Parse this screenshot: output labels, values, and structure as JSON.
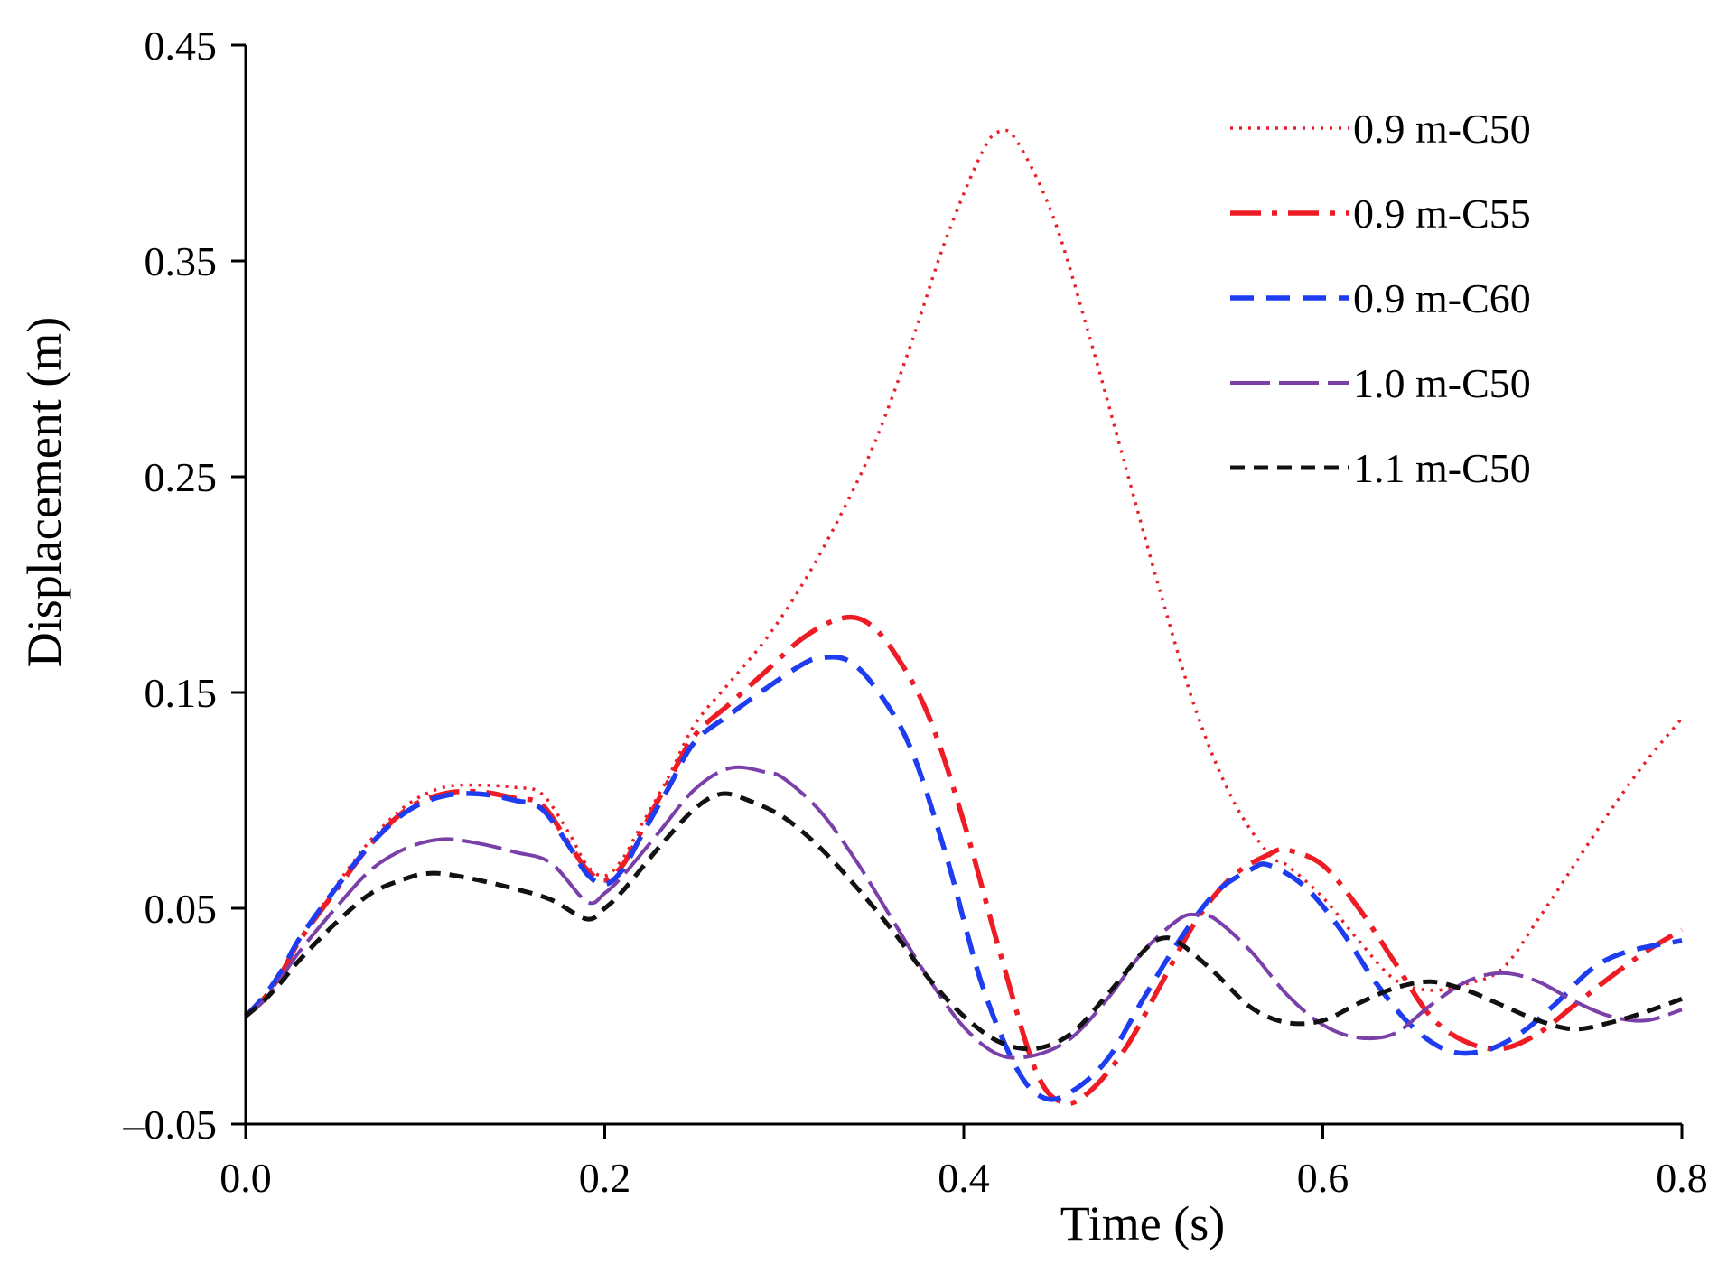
{
  "chart_data": {
    "type": "line",
    "title": "",
    "xlabel": "Time (s)",
    "ylabel": "Displacement (m)",
    "xlim": [
      0.0,
      0.8
    ],
    "ylim": [
      -0.05,
      0.45
    ],
    "xticks": [
      0.0,
      0.2,
      0.4,
      0.6,
      0.8
    ],
    "xtick_labels": [
      "0.0",
      "0.2",
      "0.4",
      "0.6",
      "0.8"
    ],
    "yticks": [
      -0.05,
      0.05,
      0.15,
      0.25,
      0.35,
      0.45
    ],
    "ytick_labels": [
      "–0.05",
      "0.05",
      "0.15",
      "0.25",
      "0.35",
      "0.45"
    ],
    "grid": false,
    "legend_position": "top-right",
    "series": [
      {
        "name": "0.9 m-C50",
        "color": "#e8202a",
        "dash": "dotted",
        "x": [
          0,
          0.01,
          0.02,
          0.03,
          0.05,
          0.07,
          0.09,
          0.11,
          0.13,
          0.15,
          0.165,
          0.18,
          0.19,
          0.2,
          0.21,
          0.22,
          0.235,
          0.25,
          0.27,
          0.29,
          0.31,
          0.33,
          0.35,
          0.37,
          0.39,
          0.41,
          0.42,
          0.43,
          0.45,
          0.47,
          0.49,
          0.51,
          0.53,
          0.55,
          0.57,
          0.58,
          0.6,
          0.62,
          0.64,
          0.66,
          0.68,
          0.7,
          0.72,
          0.74,
          0.76,
          0.78,
          0.8
        ],
        "y": [
          0,
          0.008,
          0.02,
          0.035,
          0.06,
          0.082,
          0.098,
          0.106,
          0.107,
          0.106,
          0.103,
          0.085,
          0.07,
          0.065,
          0.073,
          0.088,
          0.11,
          0.135,
          0.155,
          0.175,
          0.2,
          0.23,
          0.265,
          0.31,
          0.36,
          0.4,
          0.41,
          0.405,
          0.37,
          0.315,
          0.255,
          0.195,
          0.14,
          0.1,
          0.075,
          0.07,
          0.055,
          0.035,
          0.017,
          0.012,
          0.015,
          0.022,
          0.045,
          0.07,
          0.095,
          0.118,
          0.138
        ]
      },
      {
        "name": "0.9 m-C55",
        "color": "#ee1c24",
        "dash": "dash-dot",
        "x": [
          0,
          0.01,
          0.02,
          0.03,
          0.05,
          0.07,
          0.09,
          0.11,
          0.13,
          0.15,
          0.165,
          0.18,
          0.19,
          0.2,
          0.21,
          0.22,
          0.235,
          0.25,
          0.27,
          0.29,
          0.31,
          0.33,
          0.345,
          0.36,
          0.38,
          0.4,
          0.42,
          0.44,
          0.455,
          0.47,
          0.49,
          0.51,
          0.53,
          0.55,
          0.57,
          0.58,
          0.6,
          0.62,
          0.64,
          0.66,
          0.68,
          0.7,
          0.72,
          0.74,
          0.76,
          0.78,
          0.8
        ],
        "y": [
          0,
          0.008,
          0.02,
          0.035,
          0.058,
          0.08,
          0.096,
          0.103,
          0.104,
          0.101,
          0.098,
          0.08,
          0.068,
          0.063,
          0.07,
          0.085,
          0.108,
          0.13,
          0.145,
          0.16,
          0.175,
          0.184,
          0.183,
          0.17,
          0.14,
          0.09,
          0.03,
          -0.025,
          -0.04,
          -0.035,
          -0.015,
          0.015,
          0.045,
          0.065,
          0.075,
          0.077,
          0.07,
          0.05,
          0.025,
          0.0,
          -0.012,
          -0.015,
          -0.008,
          0.005,
          0.018,
          0.03,
          0.04
        ]
      },
      {
        "name": "0.9 m-C60",
        "color": "#1e3cf0",
        "dash": "dashed",
        "x": [
          0,
          0.01,
          0.02,
          0.03,
          0.05,
          0.07,
          0.09,
          0.11,
          0.13,
          0.15,
          0.165,
          0.18,
          0.19,
          0.2,
          0.21,
          0.22,
          0.235,
          0.25,
          0.27,
          0.29,
          0.31,
          0.32,
          0.335,
          0.35,
          0.37,
          0.39,
          0.41,
          0.43,
          0.445,
          0.46,
          0.48,
          0.5,
          0.52,
          0.54,
          0.56,
          0.57,
          0.59,
          0.61,
          0.63,
          0.65,
          0.67,
          0.69,
          0.71,
          0.73,
          0.75,
          0.77,
          0.8
        ],
        "y": [
          0,
          0.009,
          0.021,
          0.036,
          0.059,
          0.08,
          0.095,
          0.102,
          0.103,
          0.1,
          0.096,
          0.079,
          0.066,
          0.061,
          0.068,
          0.083,
          0.105,
          0.127,
          0.14,
          0.152,
          0.163,
          0.166,
          0.165,
          0.153,
          0.125,
          0.075,
          0.015,
          -0.025,
          -0.038,
          -0.035,
          -0.02,
          0.008,
          0.035,
          0.057,
          0.068,
          0.07,
          0.06,
          0.04,
          0.015,
          -0.005,
          -0.016,
          -0.016,
          -0.008,
          0.006,
          0.022,
          0.03,
          0.035
        ]
      },
      {
        "name": "1.0 m-C50",
        "color": "#7a3fa8",
        "dash": "long-dash",
        "x": [
          0,
          0.01,
          0.02,
          0.03,
          0.05,
          0.07,
          0.09,
          0.11,
          0.13,
          0.15,
          0.17,
          0.19,
          0.2,
          0.21,
          0.23,
          0.25,
          0.27,
          0.29,
          0.3,
          0.32,
          0.34,
          0.36,
          0.38,
          0.4,
          0.42,
          0.44,
          0.46,
          0.48,
          0.5,
          0.52,
          0.53,
          0.54,
          0.56,
          0.58,
          0.6,
          0.62,
          0.64,
          0.66,
          0.68,
          0.7,
          0.72,
          0.74,
          0.76,
          0.78,
          0.8
        ],
        "y": [
          0,
          0.007,
          0.018,
          0.03,
          0.05,
          0.068,
          0.078,
          0.082,
          0.08,
          0.076,
          0.071,
          0.053,
          0.057,
          0.065,
          0.085,
          0.105,
          0.115,
          0.113,
          0.11,
          0.095,
          0.072,
          0.045,
          0.018,
          -0.005,
          -0.018,
          -0.018,
          -0.01,
          0.008,
          0.03,
          0.045,
          0.047,
          0.045,
          0.03,
          0.01,
          -0.004,
          -0.01,
          -0.008,
          0.005,
          0.016,
          0.02,
          0.016,
          0.007,
          0.0,
          -0.002,
          0.003
        ]
      },
      {
        "name": "1.1 m-C50",
        "color": "#111111",
        "dash": "short-dash",
        "x": [
          0,
          0.01,
          0.02,
          0.03,
          0.05,
          0.07,
          0.09,
          0.1,
          0.11,
          0.13,
          0.15,
          0.17,
          0.19,
          0.2,
          0.21,
          0.23,
          0.25,
          0.265,
          0.28,
          0.3,
          0.32,
          0.34,
          0.36,
          0.38,
          0.4,
          0.42,
          0.44,
          0.46,
          0.48,
          0.5,
          0.51,
          0.52,
          0.54,
          0.56,
          0.58,
          0.6,
          0.62,
          0.64,
          0.66,
          0.68,
          0.7,
          0.72,
          0.74,
          0.76,
          0.78,
          0.8
        ],
        "y": [
          0,
          0.007,
          0.016,
          0.026,
          0.043,
          0.057,
          0.064,
          0.066,
          0.066,
          0.063,
          0.059,
          0.054,
          0.045,
          0.05,
          0.058,
          0.078,
          0.096,
          0.103,
          0.1,
          0.092,
          0.078,
          0.06,
          0.04,
          0.018,
          0.0,
          -0.012,
          -0.015,
          -0.008,
          0.01,
          0.03,
          0.036,
          0.034,
          0.02,
          0.004,
          -0.003,
          -0.002,
          0.006,
          0.013,
          0.016,
          0.012,
          0.005,
          -0.002,
          -0.006,
          -0.003,
          0.002,
          0.008
        ]
      }
    ]
  }
}
